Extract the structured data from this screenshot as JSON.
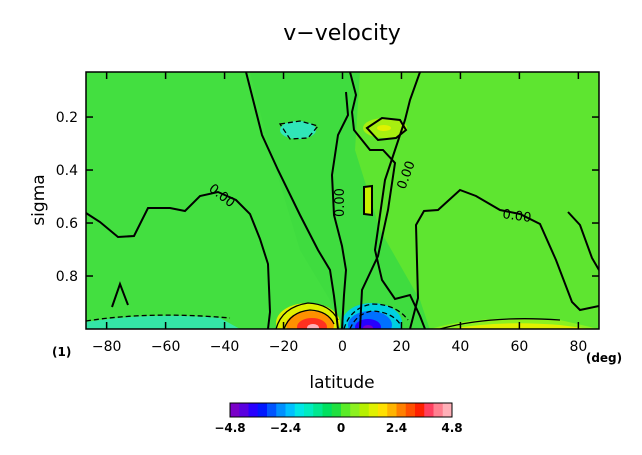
{
  "chart_data": {
    "type": "heatmap",
    "title": "v−velocity",
    "xlabel": "latitude",
    "ylabel": "sigma",
    "x_unit": "(deg)",
    "panel_tag": "(1)",
    "xlim": [
      -87,
      87
    ],
    "ylim_inverted": [
      1.0,
      0.03
    ],
    "x_ticks": [
      -80,
      -60,
      -40,
      -20,
      0,
      20,
      40,
      60,
      80
    ],
    "x_tick_labels": [
      "−80",
      "−60",
      "−40",
      "−20",
      "0",
      "20",
      "40",
      "60",
      "80"
    ],
    "y_ticks": [
      0.2,
      0.4,
      0.6,
      0.8
    ],
    "y_tick_labels": [
      "0.2",
      "0.4",
      "0.6",
      "0.8"
    ],
    "contour_labels": [
      "0.00",
      "0.00",
      "0.00",
      "0.00"
    ],
    "colorbar": {
      "min": -4.8,
      "max": 4.8,
      "step": 0.4,
      "tick_values": [
        -4.8,
        -2.4,
        0,
        2.4,
        4.8
      ],
      "tick_labels": [
        "−4.8",
        "−2.4",
        "0",
        "2.4",
        "4.8"
      ],
      "colors": [
        "#7a00c8",
        "#5a00e0",
        "#2800ff",
        "#0018ff",
        "#0055ff",
        "#0090ff",
        "#00c0ff",
        "#00e6e6",
        "#00ecc0",
        "#00e890",
        "#00e060",
        "#20e040",
        "#5aec28",
        "#8cf020",
        "#b6f000",
        "#e0f000",
        "#ffe000",
        "#ffb400",
        "#ff8000",
        "#ff5000",
        "#ff2000",
        "#ff4060",
        "#ff8090",
        "#ffb0b8"
      ]
    },
    "features": [
      {
        "lat": -5,
        "sigma": 0.98,
        "value": 4.5,
        "label": "southward-of-equator maximum"
      },
      {
        "lat": 8,
        "sigma": 0.98,
        "value": -4.6,
        "label": "north-of-equator minimum"
      },
      {
        "lat": -13,
        "sigma": 0.24,
        "value": -0.6
      },
      {
        "lat": 13,
        "sigma": 0.24,
        "value": 0.5
      }
    ]
  },
  "colors": {
    "background": "#ffffff",
    "field_base": "#3fdc3f"
  }
}
